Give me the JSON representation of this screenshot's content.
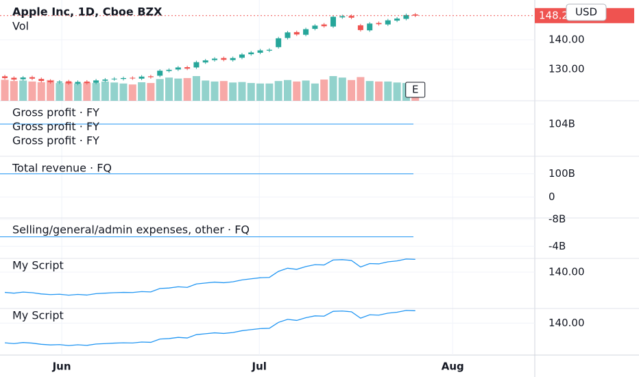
{
  "chart_data": [
    {
      "type": "candlestick",
      "title": "Apple Inc, 1D, Cboe BZX",
      "volume_label": "Vol",
      "price_label": "148.20",
      "currency": "USD",
      "earnings_marker": "E",
      "up_color": "#26a69a",
      "down_color": "#ef5350",
      "xlim": [
        -0.53,
        58.1
      ],
      "xticks": [
        {
          "value": 6.24,
          "label": "Jun"
        },
        {
          "value": 27.9,
          "label": "Jul"
        },
        {
          "value": 49.1,
          "label": "Aug"
        }
      ],
      "ylim": [
        119.3,
        153.5
      ],
      "yticks": [
        {
          "value": 130,
          "label": "130.00"
        },
        {
          "value": 140,
          "label": "140.00"
        }
      ],
      "open": [
        127.6,
        127.1,
        126.6,
        127.3,
        126.7,
        126.1,
        125.5,
        125.9,
        125.1,
        125.8,
        125.4,
        126.1,
        126.6,
        126.7,
        127.1,
        126.8,
        127.6,
        127.8,
        129.4,
        129.9,
        130.7,
        130.6,
        132.3,
        133.1,
        133.8,
        133.1,
        133.9,
        135.1,
        135.6,
        136.3,
        137.5,
        140.6,
        142.6,
        141.7,
        143.7,
        145.2,
        144.5,
        147.6,
        148.1,
        144.9,
        143.2,
        145.7,
        145.2,
        146.5,
        147.1,
        148.6
      ],
      "high": [
        128.1,
        127.6,
        127.7,
        127.8,
        127.2,
        126.6,
        126.3,
        126.4,
        126.2,
        126.3,
        126.7,
        127.0,
        127.3,
        127.5,
        127.6,
        128.0,
        128.1,
        130.0,
        130.3,
        131.1,
        131.2,
        132.9,
        133.5,
        134.1,
        134.3,
        134.3,
        135.5,
        136.2,
        136.9,
        137.1,
        141.0,
        143.0,
        143.1,
        144.1,
        145.3,
        145.7,
        148.3,
        148.5,
        148.6,
        145.4,
        146.0,
        146.2,
        147.1,
        147.7,
        148.9,
        149.1
      ],
      "low": [
        126.5,
        126.0,
        126.1,
        126.3,
        125.5,
        125.1,
        125.0,
        124.7,
        124.6,
        124.8,
        124.9,
        125.6,
        126.1,
        126.2,
        126.4,
        126.3,
        126.8,
        127.3,
        128.9,
        129.4,
        129.7,
        130.1,
        131.8,
        132.6,
        132.7,
        132.6,
        133.4,
        134.6,
        135.1,
        135.8,
        137.0,
        140.1,
        141.3,
        141.2,
        143.2,
        144.1,
        144.0,
        147.1,
        147.0,
        142.8,
        142.7,
        144.8,
        144.7,
        146.0,
        146.6,
        147.7
      ],
      "close": [
        127.0,
        126.5,
        127.2,
        126.8,
        126.0,
        125.6,
        125.8,
        125.2,
        125.7,
        125.3,
        126.2,
        126.5,
        126.8,
        127.0,
        126.9,
        127.5,
        127.3,
        129.5,
        129.8,
        130.6,
        130.2,
        132.4,
        133.0,
        133.6,
        133.2,
        133.8,
        135.0,
        135.7,
        136.4,
        136.6,
        140.5,
        142.5,
        141.8,
        143.6,
        144.8,
        144.6,
        147.8,
        148.0,
        147.5,
        143.3,
        145.5,
        145.3,
        146.6,
        147.2,
        148.4,
        148.2
      ],
      "volume": [
        85,
        80,
        82,
        78,
        75,
        84,
        72,
        76,
        70,
        74,
        72,
        78,
        74,
        70,
        66,
        75,
        72,
        88,
        94,
        90,
        92,
        100,
        82,
        78,
        80,
        74,
        76,
        72,
        70,
        70,
        80,
        84,
        78,
        82,
        70,
        86,
        100,
        94,
        84,
        96,
        80,
        78,
        78,
        74,
        72,
        60
      ]
    },
    {
      "type": "hline",
      "ylim": [
        100,
        106.9
      ],
      "yticks": [
        {
          "value": 104,
          "label": "104B"
        }
      ],
      "series": [
        {
          "name": "Gross profit · FY",
          "color": "#2196f3",
          "values": [
            104
          ]
        },
        {
          "name": "Gross profit · FY",
          "color": "#2196f3",
          "values": [
            104
          ]
        },
        {
          "name": "Gross profit · FY",
          "color": "#2196f3",
          "values": [
            104
          ]
        }
      ]
    },
    {
      "type": "hline",
      "ylim": [
        -91,
        176
      ],
      "yticks": [
        0,
        {
          "value": 100,
          "label": "100B"
        }
      ],
      "series": [
        {
          "name": "Total revenue · FQ",
          "color": "#2196f3",
          "values": [
            100
          ]
        }
      ]
    },
    {
      "type": "hline",
      "ylim": [
        -2.2,
        -8.2
      ],
      "yticks": [
        {
          "value": -8,
          "label": "-8B"
        },
        {
          "value": -4,
          "label": "-4B"
        }
      ],
      "series": [
        {
          "name": "Selling/general/admin expenses, other · FQ",
          "color": "#2196f3",
          "values": [
            -5.4
          ]
        }
      ]
    },
    {
      "type": "line",
      "ylim": [
        115.8,
        148.8
      ],
      "yticks": [
        {
          "value": 140,
          "label": "140.00"
        }
      ],
      "series": [
        {
          "name": "My Script",
          "color": "#2196f3",
          "values": [
            127.0,
            126.5,
            127.2,
            126.8,
            126.0,
            125.6,
            125.8,
            125.2,
            125.7,
            125.3,
            126.2,
            126.5,
            126.8,
            127.0,
            126.9,
            127.5,
            127.3,
            129.5,
            129.8,
            130.6,
            130.2,
            132.4,
            133.0,
            133.6,
            133.2,
            133.8,
            135.0,
            135.7,
            136.4,
            136.6,
            140.5,
            142.5,
            141.8,
            143.6,
            144.8,
            144.6,
            147.8,
            148.0,
            147.5,
            143.3,
            145.5,
            145.3,
            146.6,
            147.2,
            148.4,
            148.2
          ]
        }
      ]
    },
    {
      "type": "line",
      "ylim": [
        118.9,
        149.7
      ],
      "yticks": [
        {
          "value": 140,
          "label": "140.00"
        }
      ],
      "series": [
        {
          "name": "My Script",
          "color": "#2196f3",
          "values": [
            127.0,
            126.5,
            127.2,
            126.8,
            126.0,
            125.6,
            125.8,
            125.2,
            125.7,
            125.3,
            126.2,
            126.5,
            126.8,
            127.0,
            126.9,
            127.5,
            127.3,
            129.5,
            129.8,
            130.6,
            130.2,
            132.4,
            133.0,
            133.6,
            133.2,
            133.8,
            135.0,
            135.7,
            136.4,
            136.6,
            140.5,
            142.5,
            141.8,
            143.6,
            144.8,
            144.6,
            147.8,
            148.0,
            147.5,
            143.3,
            145.5,
            145.3,
            146.6,
            147.2,
            148.4,
            148.2
          ]
        }
      ]
    }
  ]
}
